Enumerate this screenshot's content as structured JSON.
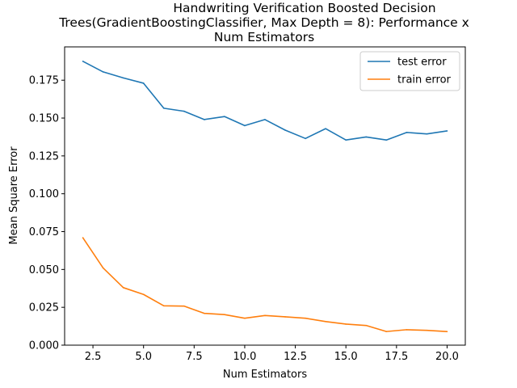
{
  "chart_data": {
    "type": "line",
    "title_lines": [
      "Handwriting Verification Boosted Decision",
      "Trees(GradientBoostingClassifier, Max Depth = 8): Performance x",
      "Num Estimators"
    ],
    "xlabel": "Num Estimators",
    "ylabel": "Mean Square Error",
    "xlim": [
      1.1,
      20.9
    ],
    "ylim": [
      0.0,
      0.197
    ],
    "x_ticks": [
      2.5,
      5.0,
      7.5,
      10.0,
      12.5,
      15.0,
      17.5,
      20.0
    ],
    "x_tick_labels": [
      "2.5",
      "5.0",
      "7.5",
      "10.0",
      "12.5",
      "15.0",
      "17.5",
      "20.0"
    ],
    "y_ticks": [
      0.0,
      0.025,
      0.05,
      0.075,
      0.1,
      0.125,
      0.15,
      0.175
    ],
    "y_tick_labels": [
      "0.000",
      "0.025",
      "0.050",
      "0.075",
      "0.100",
      "0.125",
      "0.150",
      "0.175"
    ],
    "grid": false,
    "legend_position": "top-right",
    "x": [
      2,
      3,
      4,
      5,
      6,
      7,
      8,
      9,
      10,
      11,
      12,
      13,
      14,
      15,
      16,
      17,
      18,
      19,
      20
    ],
    "series": [
      {
        "name": "test error",
        "color": "#1f77b4",
        "values": [
          0.1875,
          0.1805,
          0.1765,
          0.173,
          0.1565,
          0.1545,
          0.149,
          0.151,
          0.145,
          0.149,
          0.142,
          0.1365,
          0.143,
          0.1355,
          0.1375,
          0.1355,
          0.1405,
          0.1395,
          0.1415
        ]
      },
      {
        "name": "train error",
        "color": "#ff7f0e",
        "values": [
          0.071,
          0.051,
          0.038,
          0.0335,
          0.026,
          0.0258,
          0.021,
          0.0202,
          0.0178,
          0.0196,
          0.0187,
          0.0178,
          0.0156,
          0.0139,
          0.013,
          0.009,
          0.0102,
          0.0098,
          0.009
        ]
      }
    ]
  }
}
